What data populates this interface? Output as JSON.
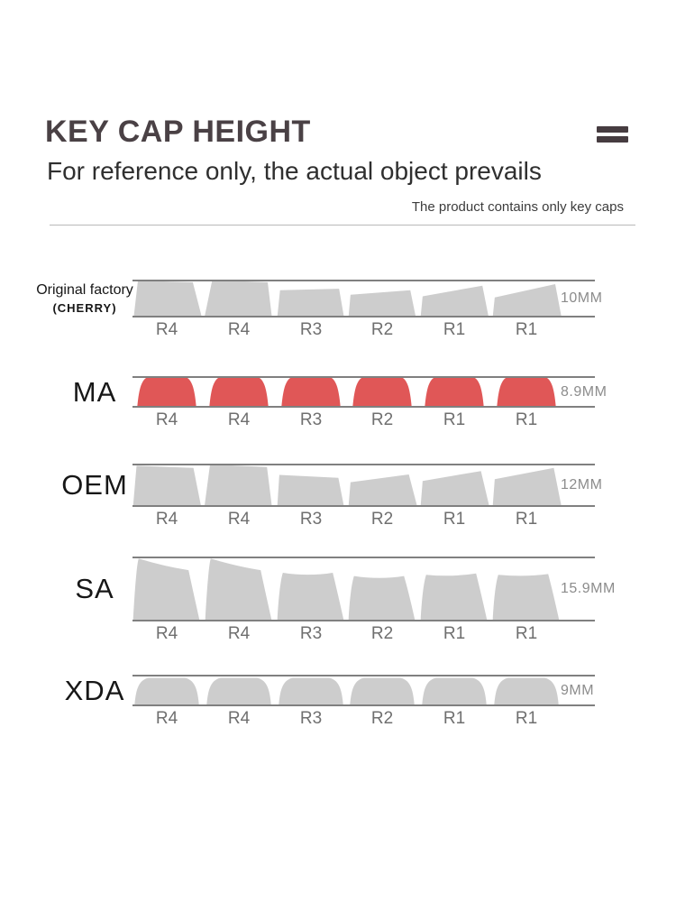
{
  "header": {
    "title": "KEY CAP HEIGHT",
    "subtitle": "For reference only, the actual object prevails",
    "note": "The product contains only key caps"
  },
  "colors": {
    "title_text": "#4a4145",
    "subtitle_text": "#2f2f2f",
    "note_text": "#3c3c3c",
    "divider": "#b9b9b9",
    "row_line": "#808080",
    "key_gray": "#cdcdcd",
    "key_red": "#e05757",
    "key_label_text": "#6f6f6f",
    "mm_text": "#8c8c8c"
  },
  "rows": [
    {
      "id": "cherry",
      "profile": "cherry",
      "label": "Original factory",
      "sublabel": "(CHERRY)",
      "height_label": "10MM",
      "key_color": "#cdcdcd",
      "keys": [
        "R4",
        "R4",
        "R3",
        "R2",
        "R1",
        "R1"
      ]
    },
    {
      "id": "ma",
      "profile": "ma",
      "label": "MA",
      "sublabel": "",
      "height_label": "8.9MM",
      "key_color": "#e05757",
      "keys": [
        "R4",
        "R4",
        "R3",
        "R2",
        "R1",
        "R1"
      ]
    },
    {
      "id": "oem",
      "profile": "oem",
      "label": "OEM",
      "sublabel": "",
      "height_label": "12MM",
      "key_color": "#cdcdcd",
      "keys": [
        "R4",
        "R4",
        "R3",
        "R2",
        "R1",
        "R1"
      ]
    },
    {
      "id": "sa",
      "profile": "sa",
      "label": "SA",
      "sublabel": "",
      "height_label": "15.9MM",
      "key_color": "#cdcdcd",
      "keys": [
        "R4",
        "R4",
        "R3",
        "R2",
        "R1",
        "R1"
      ]
    },
    {
      "id": "xda",
      "profile": "xda",
      "label": "XDA",
      "sublabel": "",
      "height_label": "9MM",
      "key_color": "#cdcdcd",
      "keys": [
        "R4",
        "R4",
        "R3",
        "R2",
        "R1",
        "R1"
      ]
    }
  ]
}
